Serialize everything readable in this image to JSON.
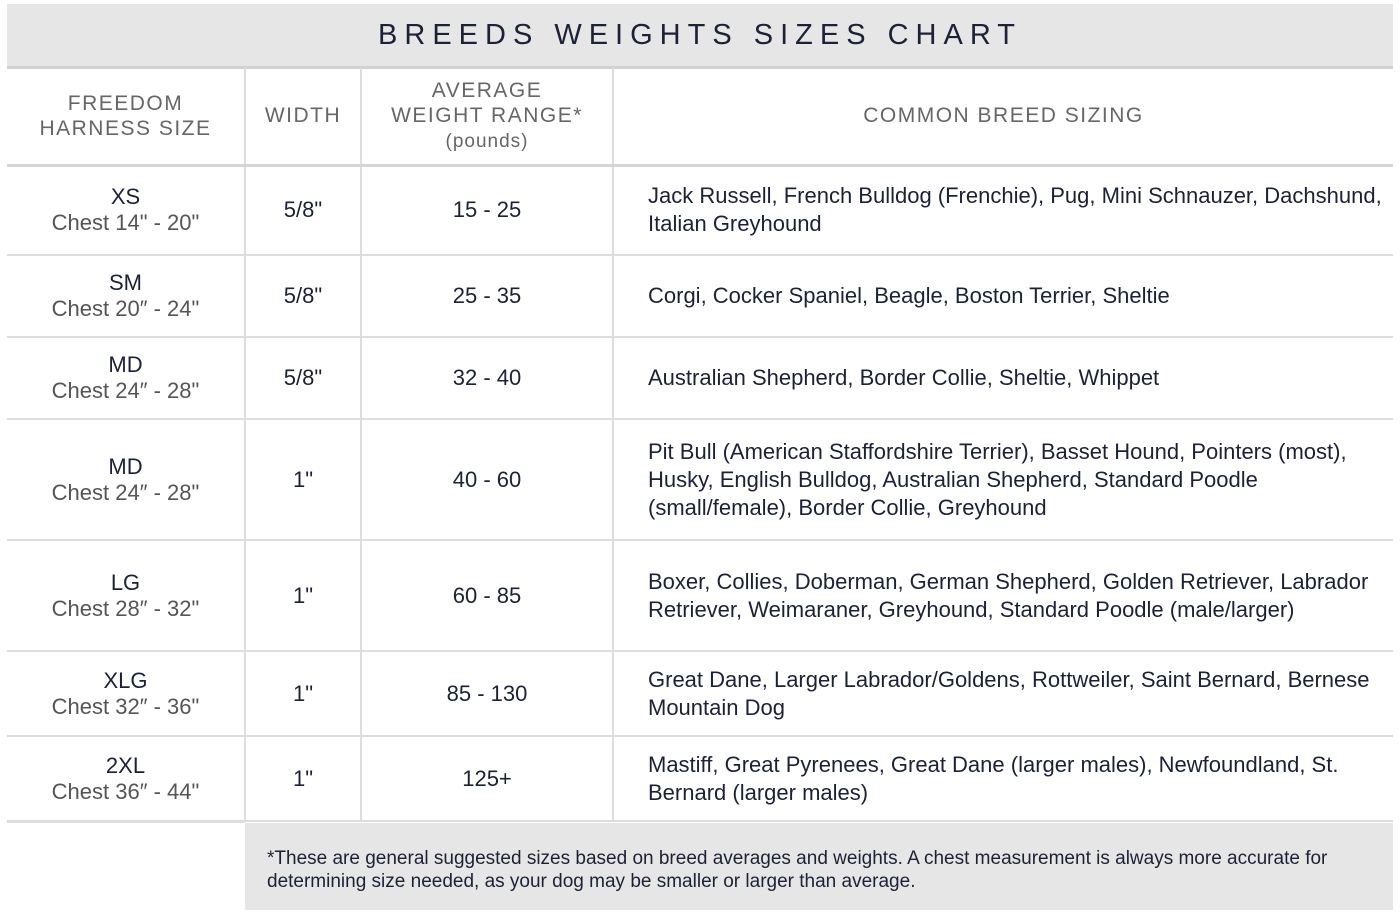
{
  "title": "BREEDS WEIGHTS SIZES CHART",
  "headers": {
    "size": [
      "FREEDOM",
      "HARNESS SIZE"
    ],
    "width": "WIDTH",
    "weight": [
      "AVERAGE",
      "WEIGHT RANGE*",
      "(pounds)"
    ],
    "breeds": "COMMON BREED SIZING"
  },
  "rows": [
    {
      "size": "XS",
      "chest": "Chest 14\" - 20\"",
      "width": "5/8\"",
      "weight": "15 - 25",
      "breeds": "Jack Russell, French Bulldog (Frenchie), Pug, Mini Schnauzer, Dachshund, Italian Greyhound"
    },
    {
      "size": "SM",
      "chest": "Chest 20″ - 24\"",
      "width": "5/8\"",
      "weight": "25 - 35",
      "breeds": "Corgi, Cocker Spaniel, Beagle, Boston Terrier, Sheltie"
    },
    {
      "size": "MD",
      "chest": "Chest 24″ - 28\"",
      "width": "5/8\"",
      "weight": "32 - 40",
      "breeds": "Australian Shepherd, Border Collie, Sheltie, Whippet"
    },
    {
      "size": "MD",
      "chest": "Chest 24″ - 28\"",
      "width": "1\"",
      "weight": "40 - 60",
      "breeds": "Pit Bull (American Staffordshire Terrier), Basset Hound, Pointers (most), Husky, English Bulldog, Australian Shepherd, Standard Poodle (small/female), Border Collie, Greyhound"
    },
    {
      "size": "LG",
      "chest": "Chest 28″ - 32\"",
      "width": "1\"",
      "weight": "60 - 85",
      "breeds": "Boxer, Collies, Doberman, German Shepherd, Golden Retriever, Labrador Retriever, Weimaraner, Greyhound, Standard Poodle (male/larger)"
    },
    {
      "size": "XLG",
      "chest": "Chest 32″ - 36\"",
      "width": "1\"",
      "weight": "85 - 130",
      "breeds": "Great Dane, Larger Labrador/Goldens, Rottweiler, Saint Bernard, Bernese Mountain Dog"
    },
    {
      "size": "2XL",
      "chest": "Chest 36″ - 44\"",
      "width": "1\"",
      "weight": "125+",
      "breeds": "Mastiff, Great Pyrenees, Great Dane (larger males), Newfoundland, St. Bernard (larger males)"
    }
  ],
  "footnote": "*These are general suggested sizes based on breed averages and weights.  A chest measurement is always more accurate for determining size needed, as your dog may be smaller or larger than average."
}
